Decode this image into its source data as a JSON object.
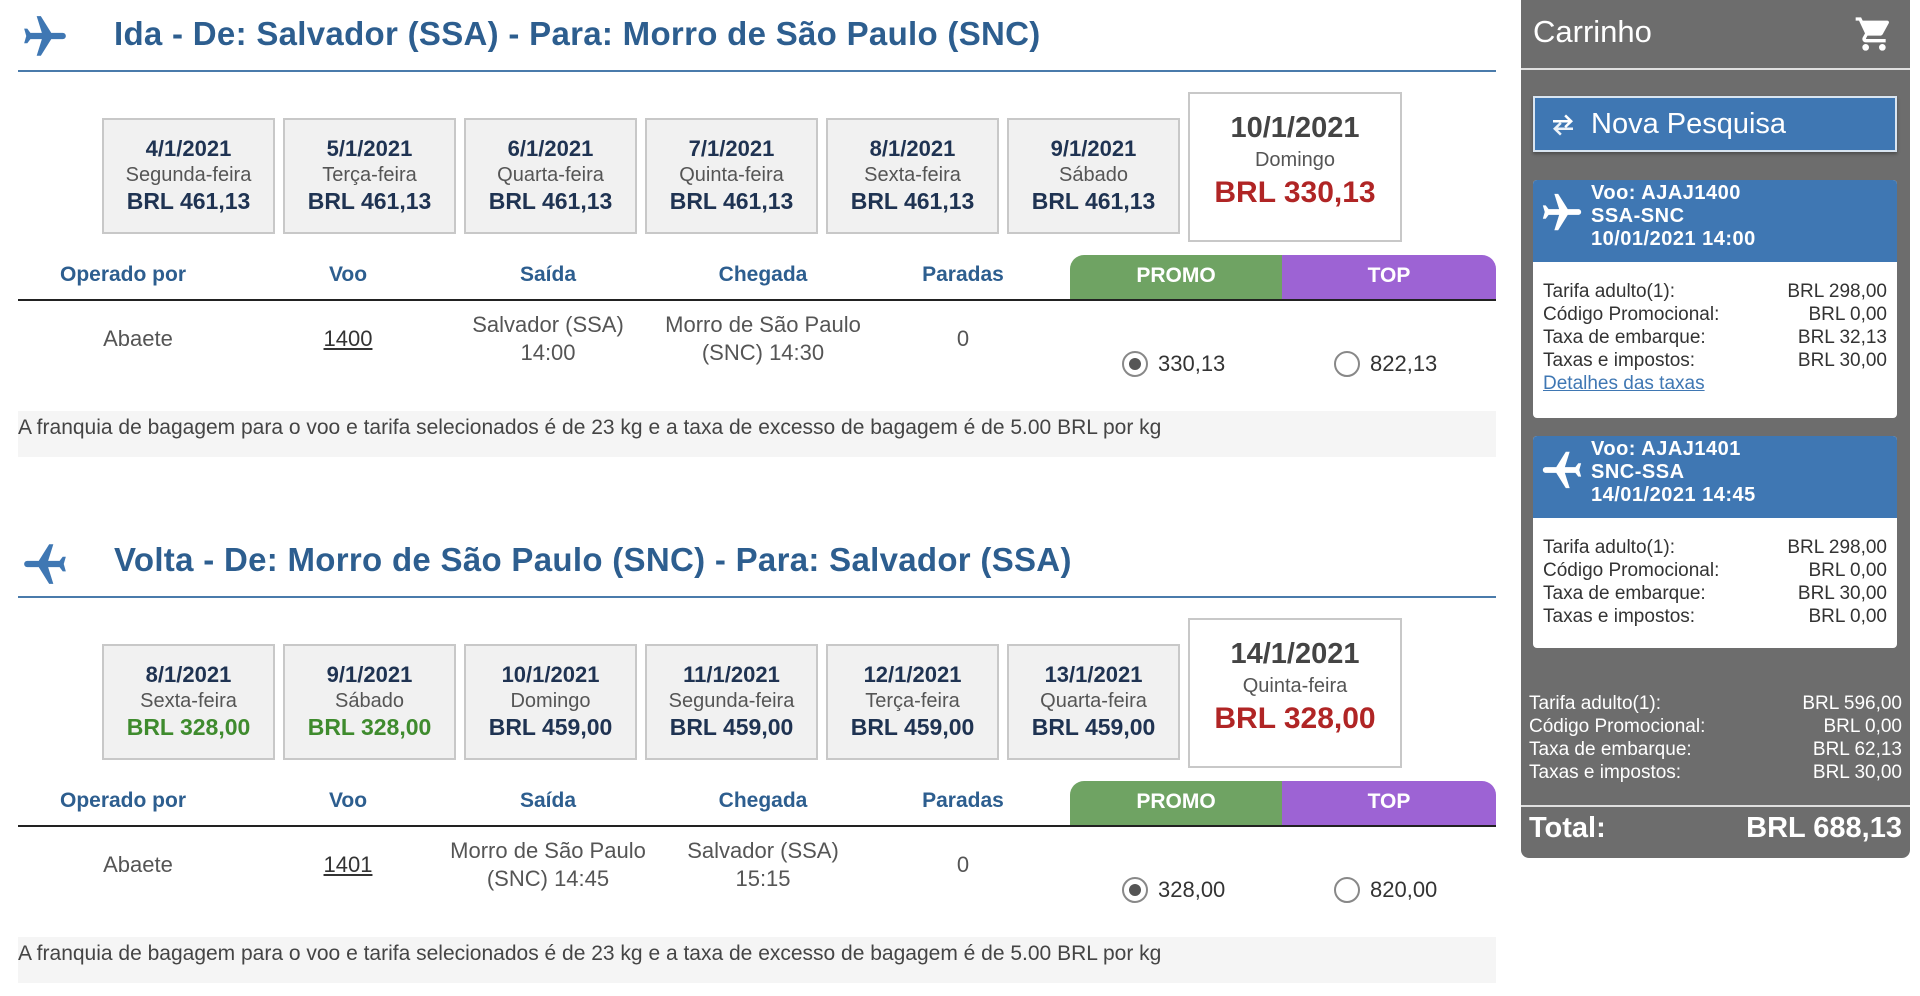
{
  "outbound": {
    "title": "Ida - De: Salvador (SSA) - Para: Morro de São Paulo (SNC)",
    "dates": [
      {
        "date": "4/1/2021",
        "weekday": "Segunda-feira",
        "price": "BRL 461,13"
      },
      {
        "date": "5/1/2021",
        "weekday": "Terça-feira",
        "price": "BRL 461,13"
      },
      {
        "date": "6/1/2021",
        "weekday": "Quarta-feira",
        "price": "BRL 461,13"
      },
      {
        "date": "7/1/2021",
        "weekday": "Quinta-feira",
        "price": "BRL 461,13"
      },
      {
        "date": "8/1/2021",
        "weekday": "Sexta-feira",
        "price": "BRL 461,13"
      },
      {
        "date": "9/1/2021",
        "weekday": "Sábado",
        "price": "BRL 461,13"
      }
    ],
    "selected_date": {
      "date": "10/1/2021",
      "weekday": "Domingo",
      "price": "BRL 330,13"
    },
    "headers": {
      "operator": "Operado por",
      "flight": "Voo",
      "departure": "Saída",
      "arrival": "Chegada",
      "stops": "Paradas",
      "promo": "PROMO",
      "top": "TOP"
    },
    "row": {
      "operator": "Abaete",
      "flight": "1400",
      "departure_line1": "Salvador (SSA)",
      "departure_line2": "14:00",
      "arrival_line1": "Morro de São Paulo",
      "arrival_line2": "(SNC) 14:30",
      "stops": "0",
      "promo_price": "330,13",
      "top_price": "822,13"
    },
    "baggage": "A franquia de bagagem para o voo e tarifa selecionados é de 23 kg e a taxa de excesso de bagagem é de 5.00 BRL por kg"
  },
  "return": {
    "title": "Volta - De: Morro de São Paulo (SNC) - Para: Salvador (SSA)",
    "dates": [
      {
        "date": "8/1/2021",
        "weekday": "Sexta-feira",
        "price": "BRL 328,00"
      },
      {
        "date": "9/1/2021",
        "weekday": "Sábado",
        "price": "BRL 328,00"
      },
      {
        "date": "10/1/2021",
        "weekday": "Domingo",
        "price": "BRL 459,00"
      },
      {
        "date": "11/1/2021",
        "weekday": "Segunda-feira",
        "price": "BRL 459,00"
      },
      {
        "date": "12/1/2021",
        "weekday": "Terça-feira",
        "price": "BRL 459,00"
      },
      {
        "date": "13/1/2021",
        "weekday": "Quarta-feira",
        "price": "BRL 459,00"
      }
    ],
    "selected_date": {
      "date": "14/1/2021",
      "weekday": "Quinta-feira",
      "price": "BRL 328,00"
    },
    "headers": {
      "operator": "Operado por",
      "flight": "Voo",
      "departure": "Saída",
      "arrival": "Chegada",
      "stops": "Paradas",
      "promo": "PROMO",
      "top": "TOP"
    },
    "row": {
      "operator": "Abaete",
      "flight": "1401",
      "departure_line1": "Morro de São Paulo",
      "departure_line2": "(SNC) 14:45",
      "arrival_line1": "Salvador (SSA)",
      "arrival_line2": "15:15",
      "stops": "0",
      "promo_price": "328,00",
      "top_price": "820,00"
    },
    "baggage": "A franquia de bagagem para o voo e tarifa selecionados é de 23 kg e a taxa de excesso de bagagem é de 5.00 BRL por kg"
  },
  "cart": {
    "title": "Carrinho",
    "new_search": "Nova Pesquisa",
    "flight1": {
      "line1": "Voo: AJAJ1400",
      "line2": "SSA-SNC",
      "line3": "10/01/2021 14:00",
      "fees": [
        {
          "label": "Tarifa adulto(1):",
          "value": "BRL 298,00"
        },
        {
          "label": "Código Promocional:",
          "value": "BRL 0,00"
        },
        {
          "label": "Taxa de embarque:",
          "value": "BRL 32,13"
        },
        {
          "label": "Taxas e impostos:",
          "value": "BRL 30,00"
        }
      ],
      "details_link": "Detalhes das taxas"
    },
    "flight2": {
      "line1": "Voo: AJAJ1401",
      "line2": "SNC-SSA",
      "line3": "14/01/2021 14:45",
      "fees": [
        {
          "label": "Tarifa adulto(1):",
          "value": "BRL 298,00"
        },
        {
          "label": "Código Promocional:",
          "value": "BRL 0,00"
        },
        {
          "label": "Taxa de embarque:",
          "value": "BRL 30,00"
        },
        {
          "label": "Taxas e impostos:",
          "value": "BRL 0,00"
        }
      ]
    },
    "totals": [
      {
        "label": "Tarifa adulto(1):",
        "value": "BRL 596,00"
      },
      {
        "label": "Código Promocional:",
        "value": "BRL 0,00"
      },
      {
        "label": "Taxa de embarque:",
        "value": "BRL 62,13"
      },
      {
        "label": "Taxas e impostos:",
        "value": "BRL 30,00"
      }
    ],
    "total_label": "Total:",
    "total_value": "BRL 688,13"
  },
  "colors": {
    "header_blue": "#2d5e8f",
    "promo_green": "#6fa363",
    "top_purple": "#9d63d4",
    "selected_price_red": "#b02525",
    "cheap_green": "#3f8b2e",
    "cart_gray": "#6d6d6d",
    "card_blue": "#3f77b3"
  },
  "icons": {
    "outbound": "plane-takeoff-icon",
    "return": "plane-landing-icon",
    "cart": "shopping-cart-icon",
    "refresh": "refresh-icon"
  }
}
